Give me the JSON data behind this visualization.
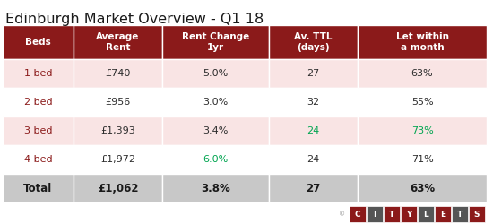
{
  "title": "Edinburgh Market Overview - Q1 18",
  "title_fontsize": 11.5,
  "header_bg": "#8B1A1A",
  "header_text_color": "#FFFFFF",
  "dark_red": "#8B1A1A",
  "green": "#00A550",
  "black": "#1a1a1a",
  "row_bgs": [
    "#F9E4E4",
    "#FFFFFF",
    "#F9E4E4",
    "#FFFFFF"
  ],
  "total_bg": "#C8C8C8",
  "columns": [
    "Beds",
    "Average\nRent",
    "Rent Change\n1yr",
    "Av. TTL\n(days)",
    "Let within\na month"
  ],
  "rows": [
    {
      "label": "1 bed",
      "values": [
        "£740",
        "5.0%",
        "27",
        "63%"
      ],
      "colors": [
        "#2d2d2d",
        "#2d2d2d",
        "#2d2d2d",
        "#2d2d2d"
      ]
    },
    {
      "label": "2 bed",
      "values": [
        "£956",
        "3.0%",
        "32",
        "55%"
      ],
      "colors": [
        "#2d2d2d",
        "#2d2d2d",
        "#2d2d2d",
        "#2d2d2d"
      ]
    },
    {
      "label": "3 bed",
      "values": [
        "£1,393",
        "3.4%",
        "24",
        "73%"
      ],
      "colors": [
        "#2d2d2d",
        "#2d2d2d",
        "#00A550",
        "#00A550"
      ]
    },
    {
      "label": "4 bed",
      "values": [
        "£1,972",
        "6.0%",
        "24",
        "71%"
      ],
      "colors": [
        "#2d2d2d",
        "#00A550",
        "#2d2d2d",
        "#2d2d2d"
      ]
    }
  ],
  "total_row": {
    "label": "Total",
    "values": [
      "£1,062",
      "3.8%",
      "27",
      "63%"
    ]
  },
  "citylets_letters": [
    "C",
    "I",
    "T",
    "Y",
    "L",
    "E",
    "T",
    "S"
  ],
  "citylets_bgs": [
    "#8B1A1A",
    "#555555",
    "#8B1A1A",
    "#8B1A1A",
    "#555555",
    "#8B1A1A",
    "#555555",
    "#8B1A1A"
  ]
}
